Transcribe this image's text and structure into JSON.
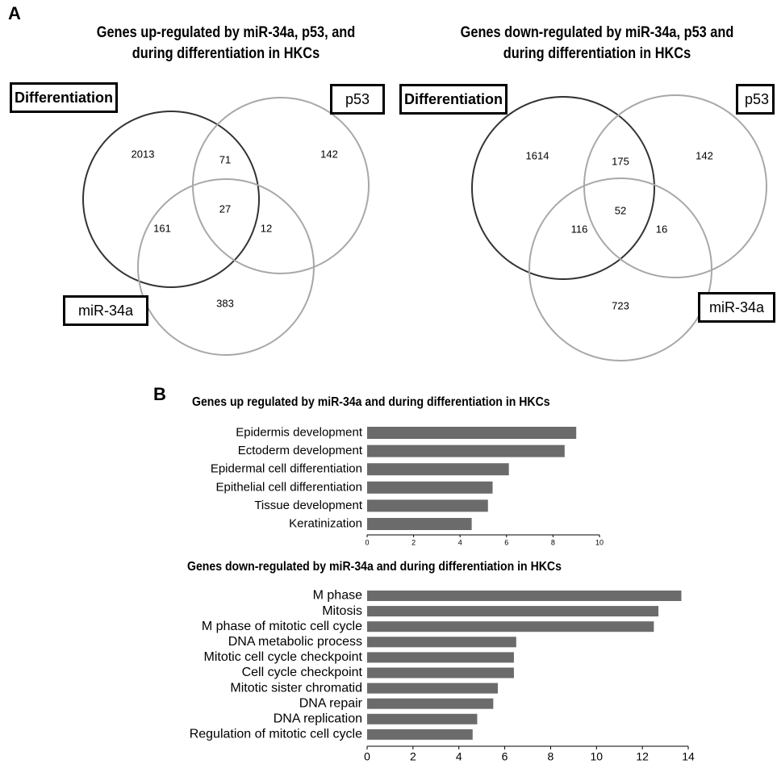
{
  "panel_a": {
    "letter": "A",
    "venns": [
      {
        "title_line1": "Genes up-regulated by miR-34a, p53, and",
        "title_line2": "during differentiation in HKCs",
        "sets": [
          "Differentiation",
          "p53",
          "miR-34a"
        ],
        "regions": {
          "differentiation_only": "2013",
          "p53_only": "142",
          "mir34a_only": "383",
          "differentiation_p53": "71",
          "differentiation_mir34a": "161",
          "p53_mir34a": "12",
          "all_three": "27"
        }
      },
      {
        "title_line1": "Genes down-regulated by miR-34a, p53 and",
        "title_line2": "during differentiation in HKCs",
        "sets": [
          "Differentiation",
          "p53",
          "miR-34a"
        ],
        "regions": {
          "differentiation_only": "1614",
          "p53_only": "142",
          "mir34a_only": "723",
          "differentiation_p53": "175",
          "differentiation_mir34a": "116",
          "p53_mir34a": "16",
          "all_three": "52"
        }
      }
    ]
  },
  "panel_b": {
    "letter": "B"
  },
  "chart_data": [
    {
      "type": "bar",
      "orientation": "horizontal",
      "title": "Genes up regulated by miR-34a and during differentiation in HKCs",
      "categories": [
        "Epidermis development",
        "Ectoderm development",
        "Epidermal cell differentiation",
        "Epithelial cell differentiation",
        "Tissue development",
        "Keratinization"
      ],
      "values": [
        9.0,
        8.5,
        6.1,
        5.4,
        5.2,
        4.5
      ],
      "xlim": [
        0,
        10
      ],
      "xticks": [
        0,
        2,
        4,
        6,
        8,
        10
      ],
      "bar_color": "#6b6b6b"
    },
    {
      "type": "bar",
      "orientation": "horizontal",
      "title": "Genes down-regulated by miR-34a and during differentiation in HKCs",
      "categories": [
        "M phase",
        "Mitosis",
        "M phase of mitotic cell cycle",
        "DNA metabolic process",
        "Mitotic cell cycle checkpoint",
        "Cell cycle checkpoint",
        "Mitotic sister chromatid",
        "DNA repair",
        "DNA replication",
        "Regulation of mitotic cell cycle"
      ],
      "values": [
        13.7,
        12.7,
        12.5,
        6.5,
        6.4,
        6.4,
        5.7,
        5.5,
        4.8,
        4.6
      ],
      "xlim": [
        0,
        14
      ],
      "xticks": [
        0,
        2,
        4,
        6,
        8,
        10,
        12,
        14
      ],
      "bar_color": "#6b6b6b"
    }
  ]
}
